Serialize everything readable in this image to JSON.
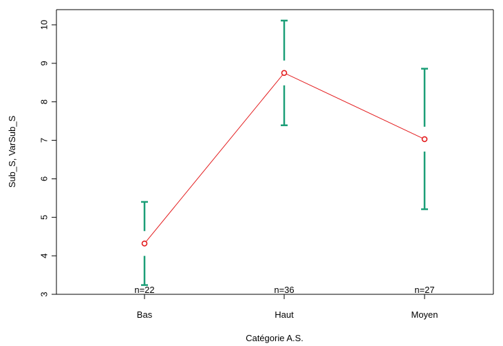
{
  "chart_data": {
    "type": "line",
    "xlabel": "Catégorie A.S.",
    "ylabel": "Sub_S, VarSub_S",
    "categories": [
      "Bas",
      "Haut",
      "Moyen"
    ],
    "ylim": [
      3,
      10
    ],
    "yticks": [
      3,
      4,
      5,
      6,
      7,
      8,
      9,
      10
    ],
    "series": [
      {
        "values": [
          4.32,
          8.75,
          7.03
        ],
        "color": "#e31a1c"
      }
    ],
    "error_bars": {
      "lower": [
        3.24,
        7.39,
        5.21
      ],
      "upper": [
        5.4,
        10.11,
        8.86
      ],
      "color": "#1b9e77"
    },
    "counts": [
      "n=22",
      "n=36",
      "n=27"
    ],
    "grid": false,
    "legend": "none"
  }
}
